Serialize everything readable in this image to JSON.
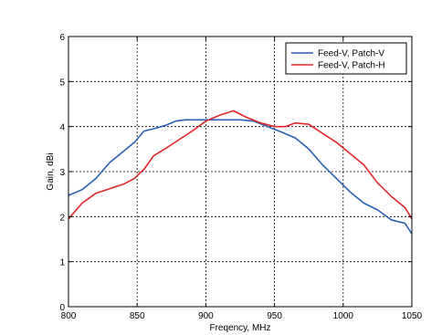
{
  "chart_data": {
    "type": "line",
    "title": "",
    "xlabel": "Freqency, MHz",
    "ylabel": "Gain, dBi",
    "xlim": [
      800,
      1050
    ],
    "ylim": [
      0,
      6
    ],
    "xticks": [
      800,
      850,
      900,
      950,
      1000,
      1050
    ],
    "yticks": [
      0,
      1,
      2,
      3,
      4,
      5,
      6
    ],
    "grid": true,
    "legend_position": "top-right",
    "series": [
      {
        "name": "Feed-V, Patch-V",
        "color": "#2b5fb4",
        "x": [
          800,
          810,
          820,
          830,
          840,
          848,
          855,
          862,
          870,
          878,
          885,
          895,
          905,
          915,
          925,
          935,
          945,
          955,
          965,
          975,
          985,
          995,
          1005,
          1015,
          1025,
          1035,
          1045,
          1050
        ],
        "y": [
          2.47,
          2.6,
          2.85,
          3.2,
          3.45,
          3.65,
          3.9,
          3.95,
          4.02,
          4.12,
          4.15,
          4.15,
          4.15,
          4.15,
          4.15,
          4.12,
          4.0,
          3.88,
          3.75,
          3.5,
          3.15,
          2.85,
          2.55,
          2.3,
          2.15,
          1.93,
          1.85,
          1.62
        ]
      },
      {
        "name": "Feed-V, Patch-H",
        "color": "#e0262b",
        "x": [
          800,
          810,
          820,
          830,
          840,
          848,
          855,
          862,
          870,
          880,
          890,
          900,
          910,
          920,
          930,
          940,
          950,
          958,
          965,
          975,
          985,
          995,
          1005,
          1015,
          1025,
          1035,
          1045,
          1050
        ],
        "y": [
          1.95,
          2.3,
          2.52,
          2.62,
          2.72,
          2.85,
          3.05,
          3.35,
          3.5,
          3.7,
          3.9,
          4.12,
          4.25,
          4.35,
          4.2,
          4.08,
          4.0,
          4.0,
          4.08,
          4.05,
          3.85,
          3.65,
          3.4,
          3.15,
          2.75,
          2.45,
          2.2,
          1.95
        ]
      }
    ]
  }
}
